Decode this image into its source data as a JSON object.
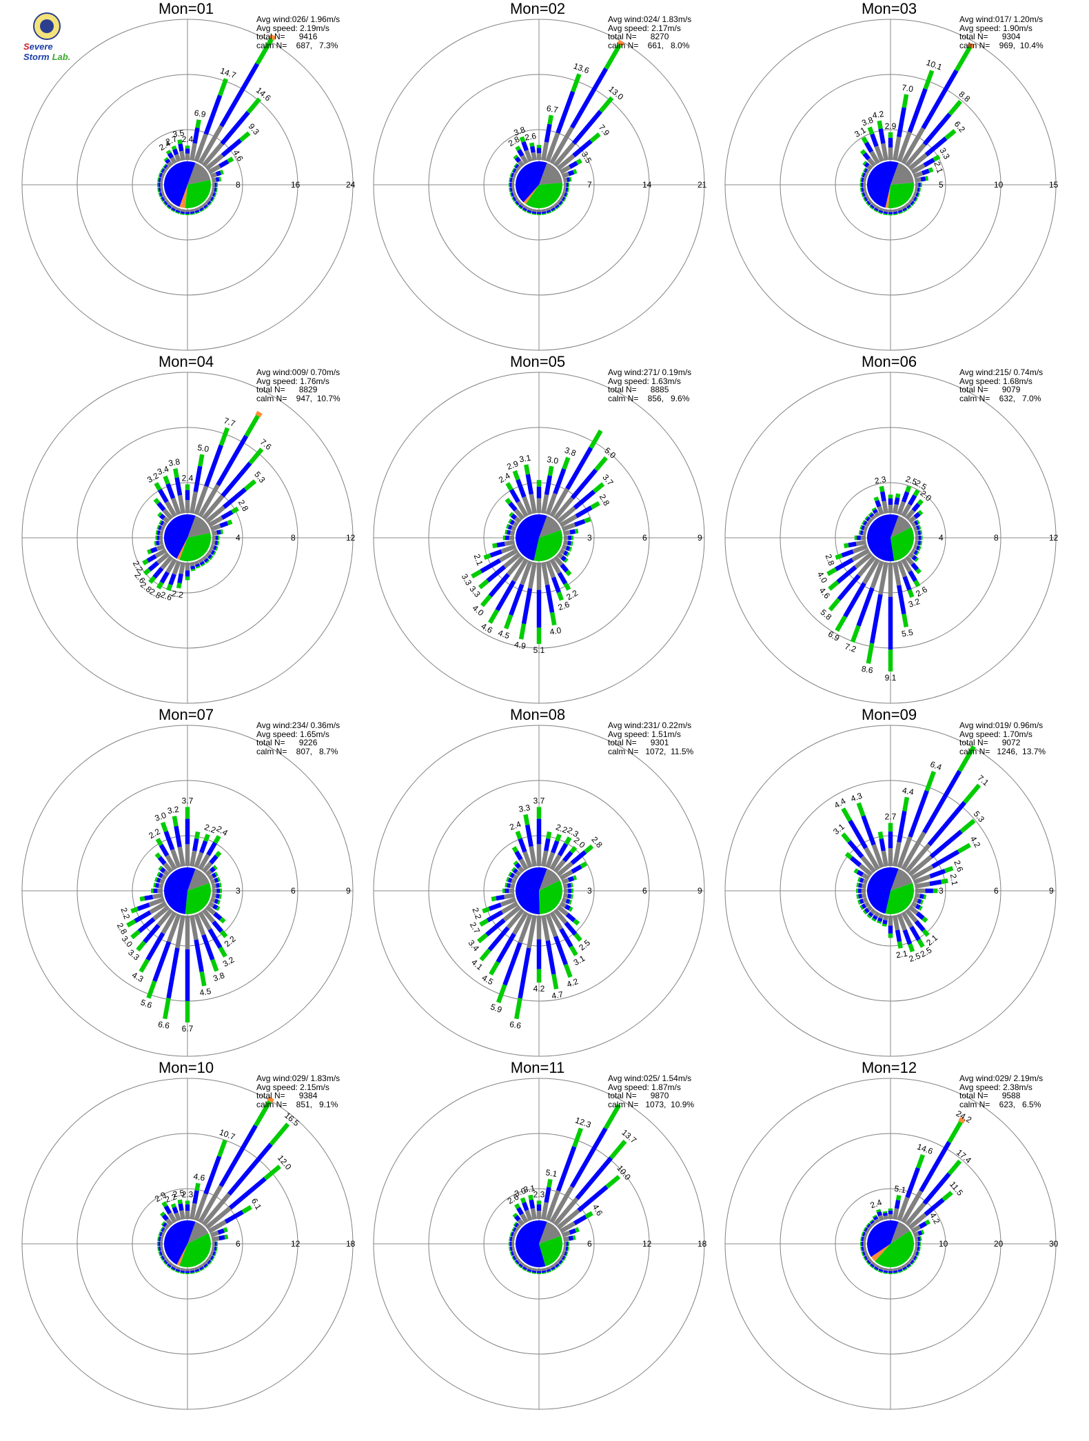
{
  "logo": {
    "text_1": "S",
    "text_2": "evere Storm",
    "text_3": "Lab."
  },
  "colors": {
    "slow": "#808080",
    "mid": "#0000ff",
    "fast": "#00cc00",
    "top": "#ff8c3a",
    "ring": "#808080",
    "axis": "#888888"
  },
  "chart_data": [
    {
      "type": "windrose",
      "title": "Mon=01",
      "stats": {
        "avg_wind": "Avg wind:026/ 1.96m/s",
        "avg_speed": "Avg speed: 2.19m/s",
        "total": "total N=      9416",
        "calm": "calm N=    687,   7.3%"
      },
      "rings": [
        "8",
        "16",
        "24"
      ],
      "rmax": 24,
      "peak_dir": 30,
      "peak_value": 24.0,
      "labels": [
        {
          "dir": 330,
          "text": "2.4"
        },
        {
          "dir": 340,
          "text": "2.7"
        },
        {
          "dir": 350,
          "text": "3.5"
        },
        {
          "dir": 0,
          "text": "2.4"
        },
        {
          "dir": 10,
          "text": "6.9"
        },
        {
          "dir": 20,
          "text": "14.7"
        },
        {
          "dir": 40,
          "text": "14.6"
        },
        {
          "dir": 50,
          "text": "9.3"
        },
        {
          "dir": 60,
          "text": "4.6"
        }
      ],
      "pie": {
        "slow": 0.16,
        "mid": 0.5,
        "fast": 0.3,
        "top": 0.04
      }
    },
    {
      "type": "windrose",
      "title": "Mon=02",
      "stats": {
        "avg_wind": "Avg wind:024/ 1.83m/s",
        "avg_speed": "Avg speed: 2.17m/s",
        "total": "total N=      8270",
        "calm": "calm N=    661,   8.0%"
      },
      "rings": [
        "7",
        "14",
        "21"
      ],
      "rmax": 21,
      "peak_dir": 30,
      "peak_value": 20.0,
      "labels": [
        {
          "dir": 330,
          "text": "2.8"
        },
        {
          "dir": 340,
          "text": "3.8"
        },
        {
          "dir": 350,
          "text": "2.6"
        },
        {
          "dir": 10,
          "text": "6.7"
        },
        {
          "dir": 20,
          "text": "13.6"
        },
        {
          "dir": 40,
          "text": "13.0"
        },
        {
          "dir": 50,
          "text": "7.9"
        },
        {
          "dir": 60,
          "text": "3.5"
        }
      ],
      "pie": {
        "slow": 0.18,
        "mid": 0.44,
        "fast": 0.36,
        "top": 0.02
      }
    },
    {
      "type": "windrose",
      "title": "Mon=03",
      "stats": {
        "avg_wind": "Avg wind:017/ 1.20m/s",
        "avg_speed": "Avg speed: 1.90m/s",
        "total": "total N=      9304",
        "calm": "calm N=    969,  10.4%"
      },
      "rings": [
        "5",
        "10",
        "15"
      ],
      "rmax": 15,
      "peak_dir": 30,
      "peak_value": 14.0,
      "labels": [
        {
          "dir": 330,
          "text": "3.1"
        },
        {
          "dir": 340,
          "text": "3.8"
        },
        {
          "dir": 350,
          "text": "4.2"
        },
        {
          "dir": 0,
          "text": "2.9"
        },
        {
          "dir": 10,
          "text": "7.0"
        },
        {
          "dir": 20,
          "text": "10.1"
        },
        {
          "dir": 40,
          "text": "8.8"
        },
        {
          "dir": 50,
          "text": "6.2"
        },
        {
          "dir": 60,
          "text": "3.3"
        },
        {
          "dir": 70,
          "text": "2.1"
        }
      ],
      "pie": {
        "slow": 0.18,
        "mid": 0.52,
        "fast": 0.28,
        "top": 0.02
      }
    },
    {
      "type": "windrose",
      "title": "Mon=04",
      "stats": {
        "avg_wind": "Avg wind:009/ 0.70m/s",
        "avg_speed": "Avg speed: 1.76m/s",
        "total": "total N=      8829",
        "calm": "calm N=    947,  10.7%"
      },
      "rings": [
        "4",
        "8",
        "12"
      ],
      "rmax": 12,
      "peak_dir": 30,
      "peak_value": 9.7,
      "labels": [
        {
          "dir": 330,
          "text": "3.2"
        },
        {
          "dir": 340,
          "text": "3.4"
        },
        {
          "dir": 350,
          "text": "3.8"
        },
        {
          "dir": 0,
          "text": "2.4"
        },
        {
          "dir": 10,
          "text": "5.0"
        },
        {
          "dir": 20,
          "text": "7.7"
        },
        {
          "dir": 40,
          "text": "7.6"
        },
        {
          "dir": 50,
          "text": "5.3"
        },
        {
          "dir": 60,
          "text": "2.8"
        },
        {
          "dir": 190,
          "text": "2.2"
        },
        {
          "dir": 200,
          "text": "2.6"
        },
        {
          "dir": 210,
          "text": "2.8"
        },
        {
          "dir": 220,
          "text": "2.8"
        },
        {
          "dir": 230,
          "text": "2.6"
        },
        {
          "dir": 240,
          "text": "2.2"
        }
      ],
      "pie": {
        "slow": 0.16,
        "mid": 0.48,
        "fast": 0.34,
        "top": 0.02
      }
    },
    {
      "type": "windrose",
      "title": "Mon=05",
      "stats": {
        "avg_wind": "Avg wind:271/ 0.19m/s",
        "avg_speed": "Avg speed: 1.63m/s",
        "total": "total N=      8885",
        "calm": "calm N=    856,   9.6%"
      },
      "rings": [
        "3",
        "6",
        "9"
      ],
      "rmax": 9,
      "peak_dir": 30,
      "peak_value": 6.2,
      "labels": [
        {
          "dir": 330,
          "text": "2.4"
        },
        {
          "dir": 340,
          "text": "2.9"
        },
        {
          "dir": 350,
          "text": "3.1"
        },
        {
          "dir": 10,
          "text": "3.0"
        },
        {
          "dir": 20,
          "text": "3.8"
        },
        {
          "dir": 40,
          "text": "5.0"
        },
        {
          "dir": 50,
          "text": "3.7"
        },
        {
          "dir": 60,
          "text": "2.8"
        },
        {
          "dir": 150,
          "text": "2.2"
        },
        {
          "dir": 160,
          "text": "2.6"
        },
        {
          "dir": 170,
          "text": "4.0"
        },
        {
          "dir": 180,
          "text": "5.1"
        },
        {
          "dir": 190,
          "text": "4.9"
        },
        {
          "dir": 200,
          "text": "4.5"
        },
        {
          "dir": 210,
          "text": "4.6"
        },
        {
          "dir": 220,
          "text": "4.0"
        },
        {
          "dir": 230,
          "text": "3.3"
        },
        {
          "dir": 240,
          "text": "3.3"
        },
        {
          "dir": 250,
          "text": "2.1"
        }
      ],
      "pie": {
        "slow": 0.14,
        "mid": 0.52,
        "fast": 0.34,
        "top": 0.0
      }
    },
    {
      "type": "windrose",
      "title": "Mon=06",
      "stats": {
        "avg_wind": "Avg wind:215/ 0.74m/s",
        "avg_speed": "Avg speed: 1.68m/s",
        "total": "total N=      9079",
        "calm": "calm N=    632,   7.0%"
      },
      "rings": [
        "4",
        "8",
        "12"
      ],
      "rmax": 12,
      "peak_dir": 180,
      "peak_value": 9.1,
      "labels": [
        {
          "dir": 350,
          "text": "2.3"
        },
        {
          "dir": 20,
          "text": "2.5"
        },
        {
          "dir": 30,
          "text": "2.5"
        },
        {
          "dir": 40,
          "text": "2.0"
        },
        {
          "dir": 150,
          "text": "2.6"
        },
        {
          "dir": 160,
          "text": "3.2"
        },
        {
          "dir": 170,
          "text": "5.5"
        },
        {
          "dir": 180,
          "text": "9.1"
        },
        {
          "dir": 190,
          "text": "8.6"
        },
        {
          "dir": 200,
          "text": "7.2"
        },
        {
          "dir": 210,
          "text": "6.9"
        },
        {
          "dir": 220,
          "text": "5.8"
        },
        {
          "dir": 230,
          "text": "4.6"
        },
        {
          "dir": 240,
          "text": "4.0"
        },
        {
          "dir": 250,
          "text": "2.8"
        }
      ],
      "pie": {
        "slow": 0.12,
        "mid": 0.58,
        "fast": 0.3,
        "top": 0.0
      }
    },
    {
      "type": "windrose",
      "title": "Mon=07",
      "stats": {
        "avg_wind": "Avg wind:234/ 0.36m/s",
        "avg_speed": "Avg speed: 1.65m/s",
        "total": "total N=      9226",
        "calm": "calm N=    807,   8.7%"
      },
      "rings": [
        "3",
        "6",
        "9"
      ],
      "rmax": 9,
      "peak_dir": 180,
      "peak_value": 6.7,
      "labels": [
        {
          "dir": 330,
          "text": "2.2"
        },
        {
          "dir": 340,
          "text": "3.0"
        },
        {
          "dir": 350,
          "text": "3.2"
        },
        {
          "dir": 0,
          "text": "3.7"
        },
        {
          "dir": 20,
          "text": "2.2"
        },
        {
          "dir": 30,
          "text": "2.4"
        },
        {
          "dir": 140,
          "text": "2.2"
        },
        {
          "dir": 150,
          "text": "3.2"
        },
        {
          "dir": 160,
          "text": "3.8"
        },
        {
          "dir": 170,
          "text": "4.5"
        },
        {
          "dir": 180,
          "text": "6.7"
        },
        {
          "dir": 190,
          "text": "6.6"
        },
        {
          "dir": 200,
          "text": "5.6"
        },
        {
          "dir": 210,
          "text": "4.3"
        },
        {
          "dir": 220,
          "text": "3.3"
        },
        {
          "dir": 230,
          "text": "3.0"
        },
        {
          "dir": 240,
          "text": "2.8"
        },
        {
          "dir": 250,
          "text": "2.2"
        }
      ],
      "pie": {
        "slow": 0.14,
        "mid": 0.54,
        "fast": 0.32,
        "top": 0.0
      }
    },
    {
      "type": "windrose",
      "title": "Mon=08",
      "stats": {
        "avg_wind": "Avg wind:231/ 0.22m/s",
        "avg_speed": "Avg speed: 1.51m/s",
        "total": "total N=      9301",
        "calm": "calm N=   1072,  11.5%"
      },
      "rings": [
        "3",
        "6",
        "9"
      ],
      "rmax": 9,
      "peak_dir": 190,
      "peak_value": 6.6,
      "labels": [
        {
          "dir": 340,
          "text": "2.4"
        },
        {
          "dir": 350,
          "text": "3.3"
        },
        {
          "dir": 0,
          "text": "3.7"
        },
        {
          "dir": 20,
          "text": "2.2"
        },
        {
          "dir": 30,
          "text": "2.3"
        },
        {
          "dir": 40,
          "text": "2.0"
        },
        {
          "dir": 50,
          "text": "2.8"
        },
        {
          "dir": 140,
          "text": "2.5"
        },
        {
          "dir": 150,
          "text": "3.1"
        },
        {
          "dir": 160,
          "text": "4.2"
        },
        {
          "dir": 170,
          "text": "4.7"
        },
        {
          "dir": 180,
          "text": "4.2"
        },
        {
          "dir": 190,
          "text": "6.6"
        },
        {
          "dir": 200,
          "text": "5.9"
        },
        {
          "dir": 210,
          "text": "4.5"
        },
        {
          "dir": 220,
          "text": "4.1"
        },
        {
          "dir": 230,
          "text": "3.4"
        },
        {
          "dir": 240,
          "text": "2.7"
        },
        {
          "dir": 250,
          "text": "2.2"
        }
      ],
      "pie": {
        "slow": 0.12,
        "mid": 0.56,
        "fast": 0.32,
        "top": 0.0
      }
    },
    {
      "type": "windrose",
      "title": "Mon=09",
      "stats": {
        "avg_wind": "Avg wind:019/ 0.96m/s",
        "avg_speed": "Avg speed: 1.70m/s",
        "total": "total N=      9072",
        "calm": "calm N=   1246,  13.7%"
      },
      "rings": [
        "3",
        "6",
        "9"
      ],
      "rmax": 9,
      "peak_dir": 30,
      "peak_value": 8.9,
      "labels": [
        {
          "dir": 320,
          "text": "3.1"
        },
        {
          "dir": 330,
          "text": "4.4"
        },
        {
          "dir": 340,
          "text": "4.3"
        },
        {
          "dir": 0,
          "text": "2.7"
        },
        {
          "dir": 10,
          "text": "4.4"
        },
        {
          "dir": 20,
          "text": "6.4"
        },
        {
          "dir": 40,
          "text": "7.1"
        },
        {
          "dir": 50,
          "text": "5.3"
        },
        {
          "dir": 60,
          "text": "4.2"
        },
        {
          "dir": 70,
          "text": "2.6"
        },
        {
          "dir": 80,
          "text": "2.1"
        },
        {
          "dir": 140,
          "text": "2.1"
        },
        {
          "dir": 150,
          "text": "2.5"
        },
        {
          "dir": 160,
          "text": "2.5"
        },
        {
          "dir": 170,
          "text": "2.1"
        }
      ],
      "pie": {
        "slow": 0.14,
        "mid": 0.52,
        "fast": 0.34,
        "top": 0.0
      }
    },
    {
      "type": "windrose",
      "title": "Mon=10",
      "stats": {
        "avg_wind": "Avg wind:029/ 1.83m/s",
        "avg_speed": "Avg speed: 2.15m/s",
        "total": "total N=      9384",
        "calm": "calm N=    851,   9.1%"
      },
      "rings": [
        "6",
        "12",
        "18"
      ],
      "rmax": 18,
      "peak_dir": 30,
      "peak_value": 17.5,
      "labels": [
        {
          "dir": 330,
          "text": "2.9"
        },
        {
          "dir": 340,
          "text": "2.2"
        },
        {
          "dir": 350,
          "text": "2.5"
        },
        {
          "dir": 0,
          "text": "2.3"
        },
        {
          "dir": 10,
          "text": "4.6"
        },
        {
          "dir": 20,
          "text": "10.7"
        },
        {
          "dir": 40,
          "text": "16.5"
        },
        {
          "dir": 50,
          "text": "12.0"
        },
        {
          "dir": 60,
          "text": "6.1"
        }
      ],
      "pie": {
        "slow": 0.12,
        "mid": 0.48,
        "fast": 0.38,
        "top": 0.02
      }
    },
    {
      "type": "windrose",
      "title": "Mon=11",
      "stats": {
        "avg_wind": "Avg wind:025/ 1.54m/s",
        "avg_speed": "Avg speed: 1.87m/s",
        "total": "total N=      9870",
        "calm": "calm N=   1073,  10.9%"
      },
      "rings": [
        "6",
        "12",
        "18"
      ],
      "rmax": 18,
      "peak_dir": 30,
      "peak_value": 17.0,
      "labels": [
        {
          "dir": 330,
          "text": "2.6"
        },
        {
          "dir": 340,
          "text": "3.0"
        },
        {
          "dir": 350,
          "text": "3.1"
        },
        {
          "dir": 0,
          "text": "2.3"
        },
        {
          "dir": 10,
          "text": "5.1"
        },
        {
          "dir": 20,
          "text": "12.3"
        },
        {
          "dir": 40,
          "text": "13.7"
        },
        {
          "dir": 50,
          "text": "10.0"
        },
        {
          "dir": 60,
          "text": "4.6"
        }
      ],
      "pie": {
        "slow": 0.14,
        "mid": 0.6,
        "fast": 0.26,
        "top": 0.0
      }
    },
    {
      "type": "windrose",
      "title": "Mon=12",
      "stats": {
        "avg_wind": "Avg wind:029/ 2.19m/s",
        "avg_speed": "Avg speed: 2.38m/s",
        "total": "total N=      9588",
        "calm": "calm N=    623,   6.5%"
      },
      "rings": [
        "10",
        "20",
        "30"
      ],
      "rmax": 30,
      "peak_dir": 30,
      "peak_value": 24.2,
      "labels": [
        {
          "dir": 340,
          "text": "2.4"
        },
        {
          "dir": 10,
          "text": "5.1"
        },
        {
          "dir": 20,
          "text": "14.6"
        },
        {
          "dir": 30,
          "text": "24.2"
        },
        {
          "dir": 40,
          "text": "17.4"
        },
        {
          "dir": 50,
          "text": "11.5"
        },
        {
          "dir": 60,
          "text": "4.2"
        }
      ],
      "pie": {
        "slow": 0.1,
        "mid": 0.4,
        "fast": 0.46,
        "top": 0.04
      }
    }
  ]
}
